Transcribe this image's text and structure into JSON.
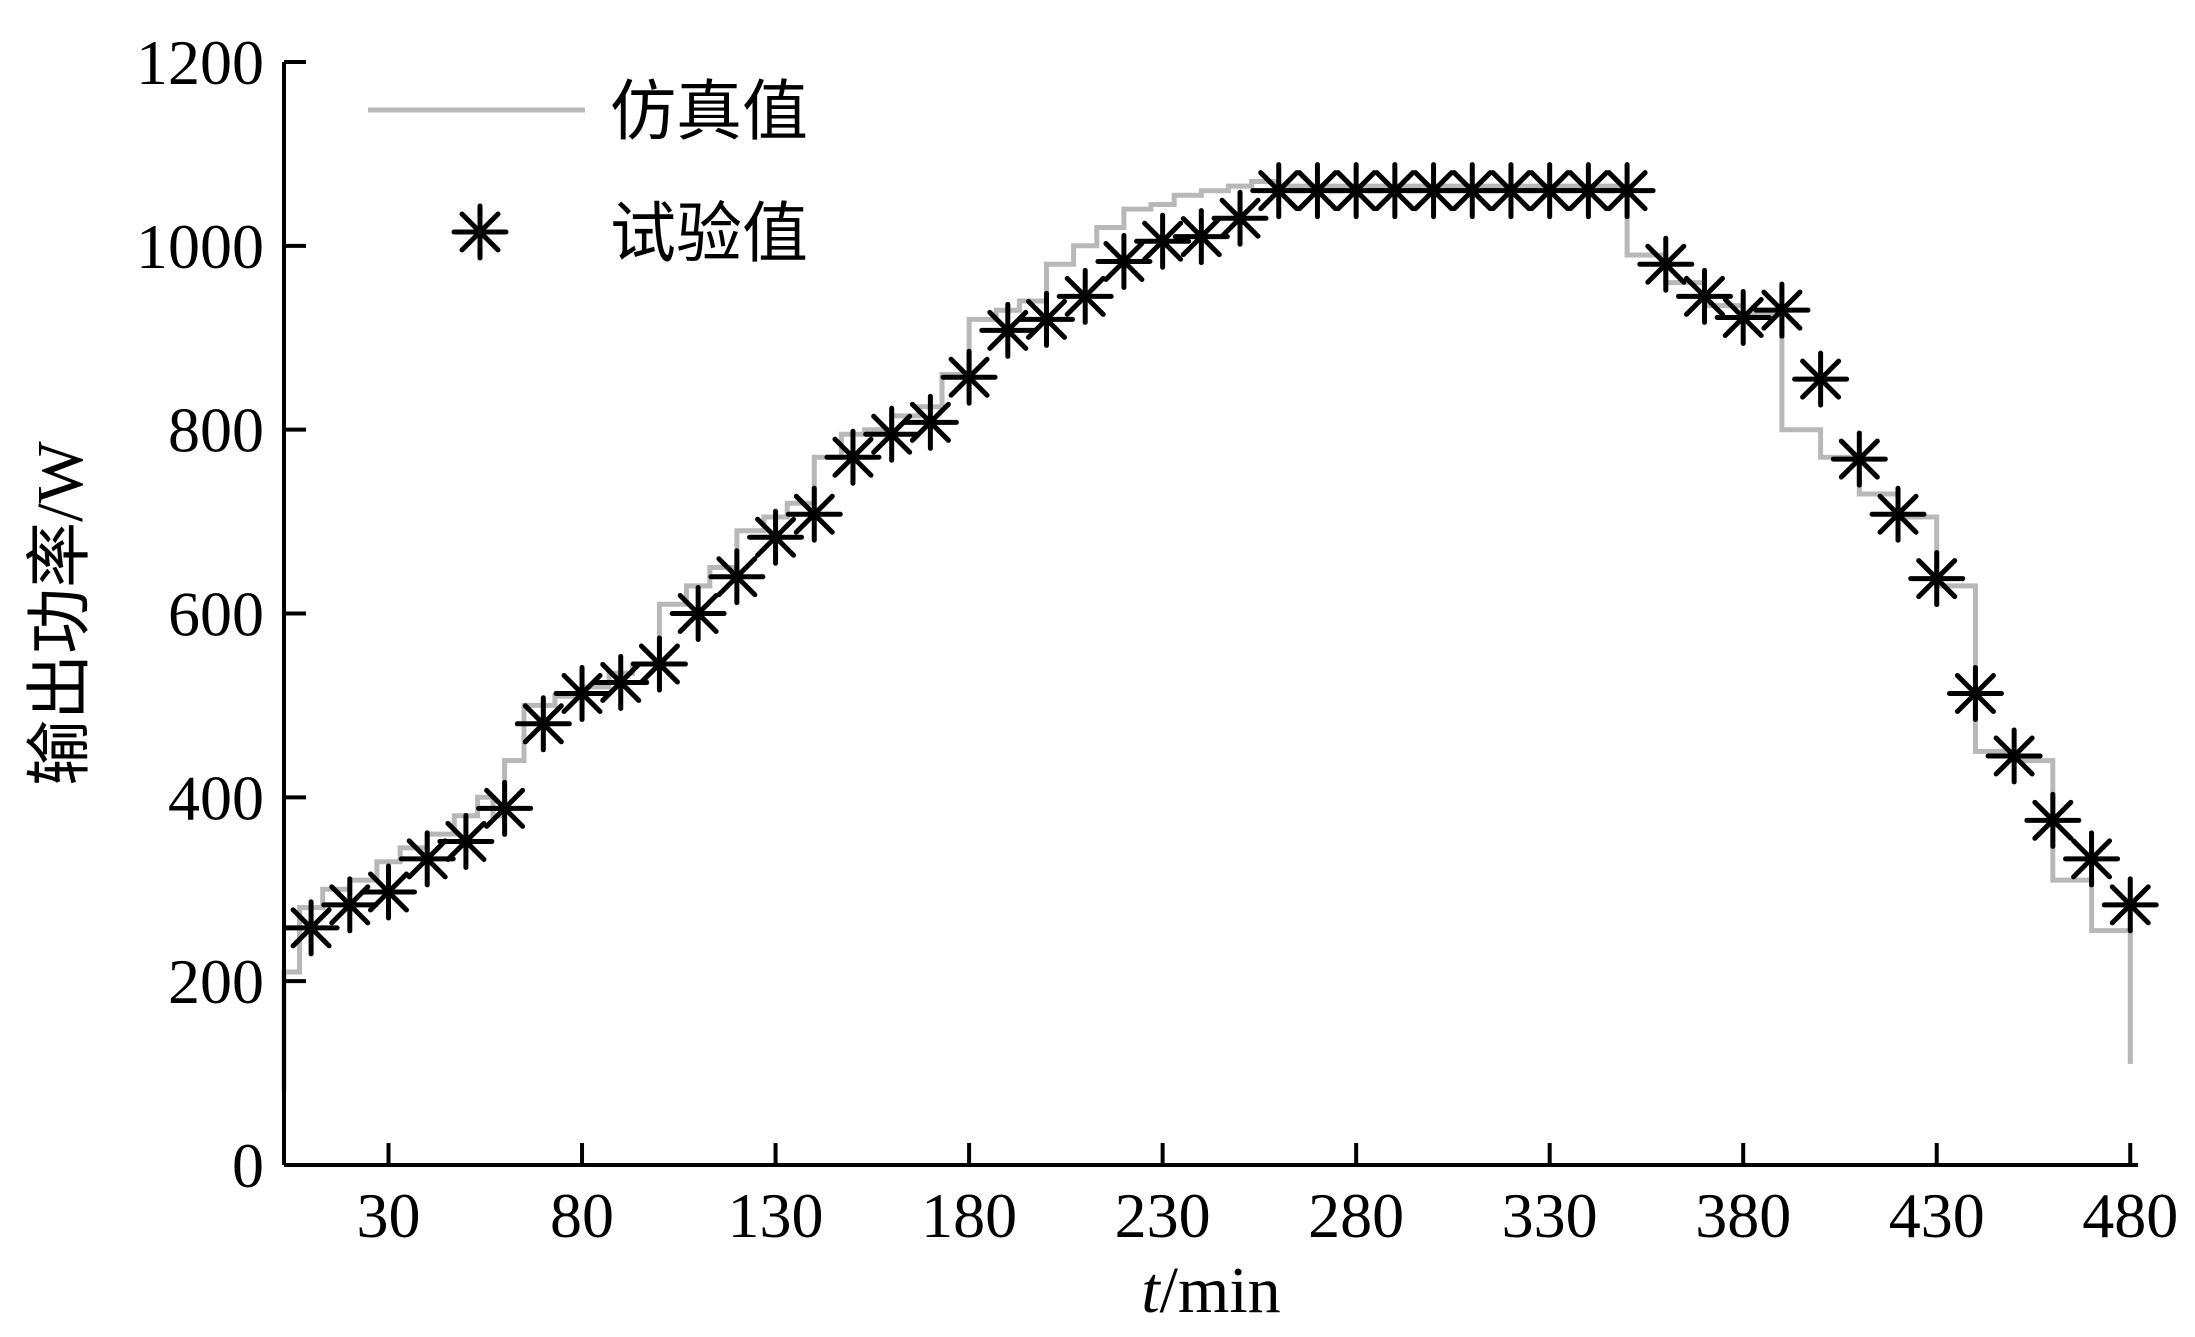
{
  "chart_data": {
    "type": "line",
    "xlabel_italic": "t",
    "xlabel_rest": "/min",
    "ylabel": "输出功率/W",
    "xlim": [
      3,
      482
    ],
    "ylim": [
      0,
      1200
    ],
    "x_ticks": [
      30,
      80,
      130,
      180,
      230,
      280,
      330,
      380,
      430,
      480
    ],
    "y_ticks": [
      0,
      200,
      400,
      600,
      800,
      1000,
      1200
    ],
    "grid": false,
    "legend_position": "top-left",
    "colors": {
      "sim": "#b8b8b8",
      "exp": "#000000",
      "axis": "#000000"
    },
    "series": [
      {
        "name": "仿真值",
        "style": "line",
        "x": [
          3,
          3,
          7,
          7,
          13,
          13,
          20,
          20,
          27,
          27,
          33,
          33,
          40,
          40,
          47,
          47,
          53,
          53,
          57,
          57,
          60,
          60,
          65,
          65,
          73,
          73,
          80,
          80,
          87,
          87,
          93,
          93,
          100,
          100,
          107,
          107,
          113,
          113,
          120,
          120,
          127,
          127,
          133,
          133,
          140,
          140,
          147,
          147,
          153,
          153,
          160,
          160,
          167,
          167,
          173,
          173,
          180,
          180,
          187,
          187,
          193,
          193,
          200,
          200,
          207,
          207,
          213,
          213,
          220,
          220,
          227,
          227,
          233,
          233,
          240,
          240,
          247,
          247,
          253,
          253,
          260,
          260,
          350,
          350,
          360,
          360,
          370,
          370,
          380,
          380,
          390,
          390,
          400,
          400,
          410,
          410,
          420,
          420,
          430,
          430,
          440,
          440,
          450,
          450,
          460,
          460,
          470,
          470,
          480,
          480
        ],
        "y": [
          80,
          210,
          210,
          280,
          280,
          300,
          300,
          310,
          310,
          330,
          330,
          345,
          345,
          360,
          360,
          380,
          380,
          400,
          400,
          380,
          380,
          440,
          440,
          500,
          500,
          510,
          510,
          520,
          520,
          535,
          535,
          545,
          545,
          610,
          610,
          630,
          630,
          650,
          650,
          690,
          690,
          705,
          705,
          720,
          720,
          770,
          770,
          795,
          795,
          800,
          800,
          815,
          815,
          825,
          825,
          860,
          860,
          920,
          920,
          930,
          930,
          940,
          940,
          980,
          980,
          1000,
          1000,
          1020,
          1020,
          1040,
          1040,
          1045,
          1045,
          1055,
          1055,
          1060,
          1060,
          1065,
          1065,
          1070,
          1070,
          1065,
          1065,
          990,
          990,
          960,
          960,
          935,
          935,
          925,
          925,
          800,
          800,
          770,
          770,
          730,
          730,
          705,
          705,
          630,
          630,
          450,
          450,
          440,
          440,
          310,
          310,
          255,
          255,
          110
        ]
      },
      {
        "name": "试验值",
        "style": "markers",
        "x": [
          10,
          20,
          30,
          40,
          50,
          60,
          70,
          80,
          90,
          100,
          110,
          120,
          130,
          140,
          150,
          160,
          170,
          180,
          190,
          200,
          210,
          220,
          230,
          240,
          250,
          260,
          270,
          280,
          290,
          300,
          310,
          320,
          330,
          340,
          350,
          360,
          370,
          380,
          390,
          400,
          410,
          420,
          430,
          440,
          450,
          460,
          470,
          480
        ],
        "y": [
          258,
          283,
          297,
          333,
          352,
          388,
          480,
          513,
          525,
          545,
          600,
          640,
          683,
          708,
          770,
          795,
          808,
          857,
          908,
          920,
          945,
          983,
          1005,
          1010,
          1030,
          1060,
          1060,
          1060,
          1060,
          1060,
          1060,
          1060,
          1060,
          1060,
          1060,
          980,
          945,
          922,
          930,
          855,
          768,
          708,
          638,
          513,
          445,
          375,
          333,
          283
        ]
      }
    ]
  }
}
